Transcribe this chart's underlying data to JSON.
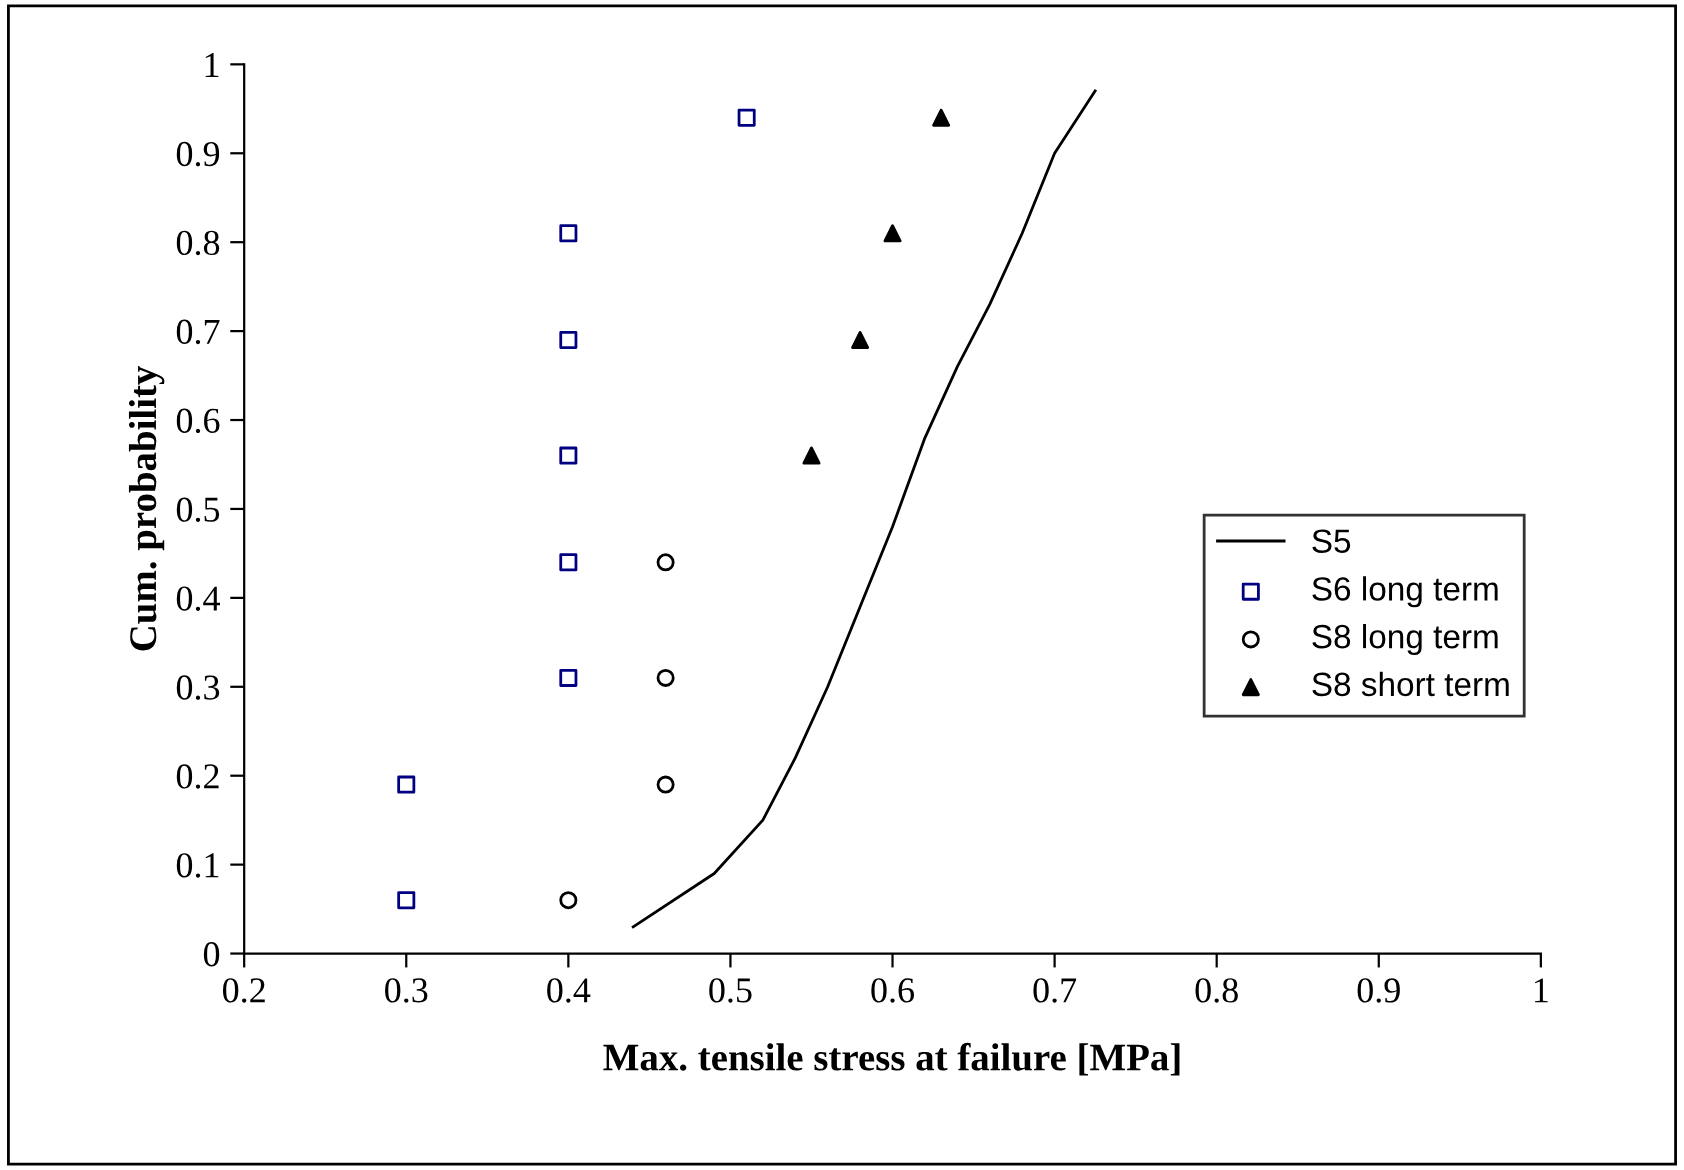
{
  "chart_data": {
    "type": "scatter",
    "xlabel": "Max. tensile stress at failure [MPa]",
    "ylabel": "Cum. probability",
    "xlim": [
      0.2,
      1
    ],
    "xticks": [
      0.2,
      0.3,
      0.4,
      0.5,
      0.6,
      0.7,
      0.8,
      0.9,
      1
    ],
    "ylim": [
      0,
      1
    ],
    "yticks": [
      0,
      0.1,
      0.2,
      0.3,
      0.4,
      0.5,
      0.6,
      0.7,
      0.8,
      0.9,
      1
    ],
    "grid": false,
    "legend": "right",
    "series": [
      {
        "name": "S5",
        "type": "line",
        "color": "#000000",
        "marker": "none",
        "line_style": "solid",
        "x": [
          0.44,
          0.49,
          0.52,
          0.54,
          0.56,
          0.58,
          0.6,
          0.62,
          0.64,
          0.66,
          0.68,
          0.7,
          0.725
        ],
        "values": [
          0.03,
          0.09,
          0.15,
          0.22,
          0.3,
          0.39,
          0.48,
          0.58,
          0.66,
          0.73,
          0.81,
          0.9,
          0.97
        ]
      },
      {
        "name": "S6 long term",
        "color": "#000080",
        "marker": "square",
        "x": [
          0.3,
          0.3,
          0.4,
          0.4,
          0.4,
          0.4,
          0.4,
          0.51
        ],
        "values": [
          0.06,
          0.19,
          0.31,
          0.44,
          0.56,
          0.69,
          0.81,
          0.94
        ]
      },
      {
        "name": "S8 long term",
        "color": "#000000",
        "marker": "circle",
        "x": [
          0.4,
          0.46,
          0.46,
          0.46
        ],
        "values": [
          0.06,
          0.19,
          0.31,
          0.44
        ]
      },
      {
        "name": "S8 short term",
        "color": "#000000",
        "marker": "triangle",
        "x": [
          0.55,
          0.58,
          0.6,
          0.63
        ],
        "values": [
          0.56,
          0.69,
          0.81,
          0.94
        ]
      }
    ]
  }
}
